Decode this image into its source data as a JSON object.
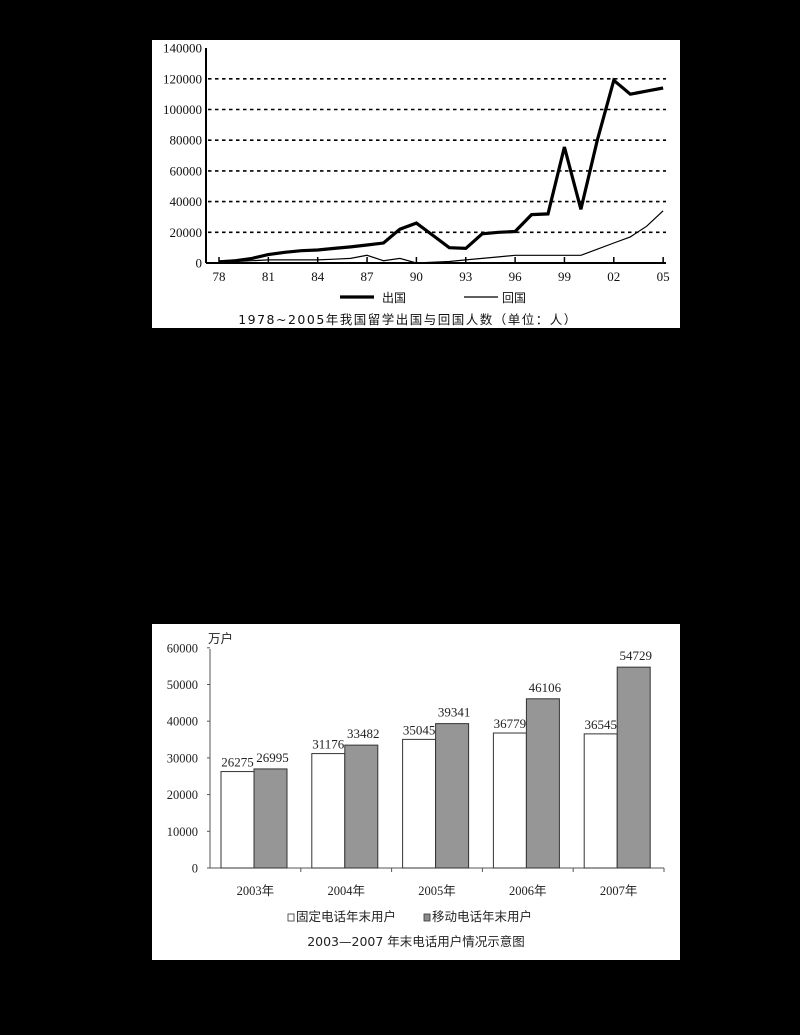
{
  "chart_data": [
    {
      "type": "line",
      "title": "1978~2005年我国留学出国与回国人数（单位：人）",
      "xlabel": "",
      "ylabel": "",
      "ylim": [
        0,
        140000
      ],
      "yticks": [
        0,
        20000,
        40000,
        60000,
        80000,
        100000,
        120000,
        140000
      ],
      "xtick_labels": [
        "78",
        "81",
        "84",
        "87",
        "90",
        "93",
        "96",
        "99",
        "02",
        "05"
      ],
      "grid": "horizontal dashed",
      "legend_position": "bottom",
      "x": [
        1978,
        1979,
        1980,
        1981,
        1982,
        1983,
        1984,
        1985,
        1986,
        1987,
        1988,
        1989,
        1990,
        1991,
        1992,
        1993,
        1994,
        1995,
        1996,
        1997,
        1998,
        1999,
        2000,
        2001,
        2002,
        2003,
        2004,
        2005
      ],
      "series": [
        {
          "name": "出国",
          "style": "thick",
          "values": [
            800,
            1500,
            3000,
            5500,
            7000,
            8000,
            8500,
            9500,
            10500,
            11700,
            13000,
            22000,
            26000,
            18000,
            10000,
            9500,
            19000,
            20000,
            20500,
            31500,
            32000,
            75600,
            35000,
            80000,
            119000,
            110000,
            112000,
            114000
          ]
        },
        {
          "name": "回国",
          "style": "thin",
          "values": [
            300,
            1000,
            1500,
            2000,
            2000,
            2000,
            2000,
            2500,
            3000,
            5000,
            1500,
            3000,
            0,
            500,
            1000,
            2000,
            3000,
            4000,
            5000,
            5000,
            5000,
            5000,
            5000,
            9000,
            13000,
            17000,
            24000,
            34000
          ]
        }
      ]
    },
    {
      "type": "bar",
      "title": "2003—2007 年末电话用户情况示意图",
      "unit_label": "万户",
      "xlabel": "",
      "ylabel": "万户",
      "ylim": [
        0,
        60000
      ],
      "yticks": [
        0,
        10000,
        20000,
        30000,
        40000,
        50000,
        60000
      ],
      "categories": [
        "2003年",
        "2004年",
        "2005年",
        "2006年",
        "2007年"
      ],
      "grid": "none",
      "legend_position": "bottom",
      "series": [
        {
          "name": "固定电话年末用户",
          "color": "#ffffff",
          "values": [
            26275,
            31176,
            35045,
            36779,
            36545
          ]
        },
        {
          "name": "移动电话年末用户",
          "color": "#969696",
          "values": [
            26995,
            33482,
            39341,
            46106,
            54729
          ]
        }
      ]
    }
  ],
  "line_chart": {
    "title": "1978~2005年我国留学出国与回国人数（单位：人）",
    "legend": {
      "out": "出国",
      "return": "回国"
    },
    "yticks": [
      "0",
      "20000",
      "40000",
      "60000",
      "80000",
      "100000",
      "120000",
      "140000"
    ],
    "xticks": [
      "78",
      "81",
      "84",
      "87",
      "90",
      "93",
      "96",
      "99",
      "02",
      "05"
    ]
  },
  "bar_chart": {
    "title": "2003—2007 年末电话用户情况示意图",
    "unit": "万户",
    "legend": {
      "fixed": "固定电话年末用户",
      "mobile": "移动电话年末用户"
    },
    "yticks": [
      "0",
      "10000",
      "20000",
      "30000",
      "40000",
      "50000",
      "60000"
    ],
    "categories": [
      "2003年",
      "2004年",
      "2005年",
      "2006年",
      "2007年"
    ],
    "fixed_labels": [
      "26275",
      "31176",
      "35045",
      "36779",
      "36545"
    ],
    "mobile_labels": [
      "26995",
      "33482",
      "39341",
      "46106",
      "54729"
    ]
  }
}
